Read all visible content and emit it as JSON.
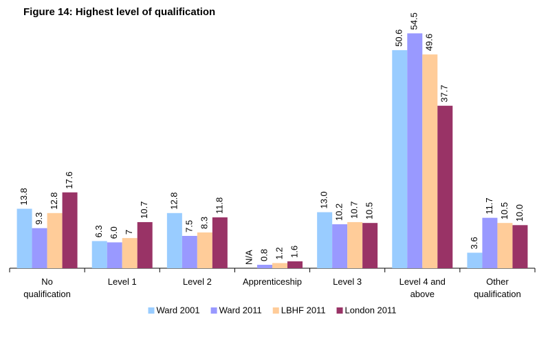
{
  "chart_data": {
    "type": "bar",
    "title": "Figure 14: Highest level of qualification",
    "categories": [
      "No\nqualification",
      "Level 1",
      "Level 2",
      "Apprenticeship",
      "Level 3",
      "Level 4 and\nabove",
      "Other\nqualification"
    ],
    "series": [
      {
        "name": "Ward 2001",
        "color": "#99ccff",
        "values": [
          13.8,
          6.3,
          12.8,
          null,
          13.0,
          50.6,
          3.6
        ],
        "value_labels": [
          "13.8",
          "6.3",
          "12.8",
          "N/A",
          "13.0",
          "50.6",
          "3.6"
        ]
      },
      {
        "name": "Ward 2011",
        "color": "#9999ff",
        "values": [
          9.3,
          6.0,
          7.5,
          0.8,
          10.2,
          54.5,
          11.7
        ],
        "value_labels": [
          "9.3",
          "6.0",
          "7.5",
          "0.8",
          "10.2",
          "54.5",
          "11.7"
        ]
      },
      {
        "name": "LBHF 2011",
        "color": "#ffcc99",
        "values": [
          12.8,
          7,
          8.3,
          1.2,
          10.7,
          49.6,
          10.5
        ],
        "value_labels": [
          "12.8",
          "7",
          "8.3",
          "1.2",
          "10.7",
          "49.6",
          "10.5"
        ]
      },
      {
        "name": "London 2011",
        "color": "#993366",
        "values": [
          17.6,
          10.7,
          11.8,
          1.6,
          10.5,
          37.7,
          10.0
        ],
        "value_labels": [
          "17.6",
          "10.7",
          "11.8",
          "1.6",
          "10.5",
          "37.7",
          "10.0"
        ]
      }
    ],
    "ylim": [
      0,
      60
    ],
    "legend": "bottom"
  }
}
